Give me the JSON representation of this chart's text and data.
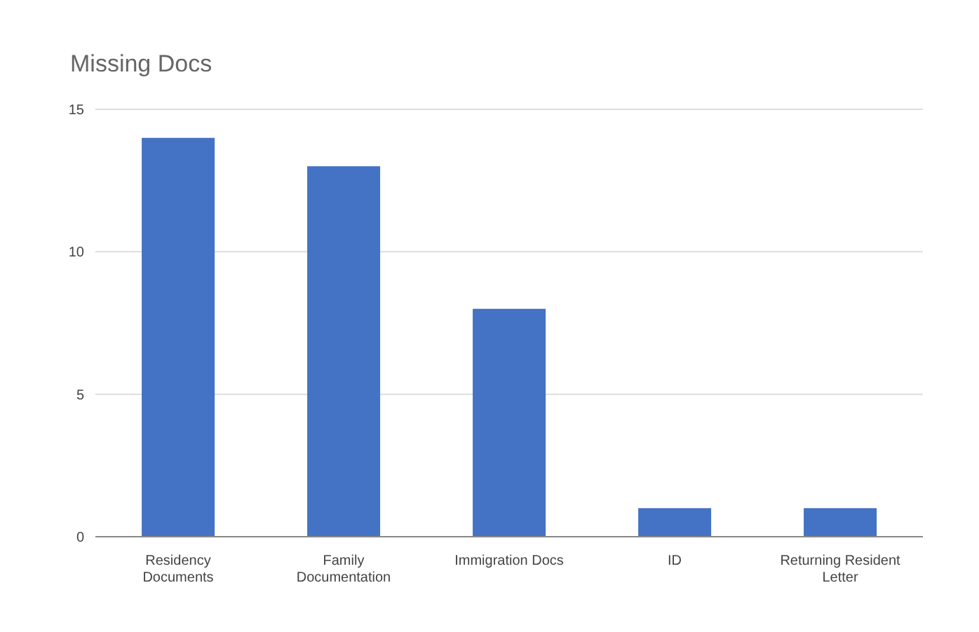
{
  "chart_data": {
    "type": "bar",
    "title": "Missing Docs",
    "categories": [
      "Residency Documents",
      "Family Documentation",
      "Immigration Docs",
      "ID",
      "Returning Resident Letter"
    ],
    "values": [
      14,
      13,
      8,
      1,
      1
    ],
    "color": "#4472c4",
    "ylim": [
      0,
      15
    ],
    "yticks": [
      0,
      5,
      10,
      15
    ],
    "grid": "y"
  }
}
